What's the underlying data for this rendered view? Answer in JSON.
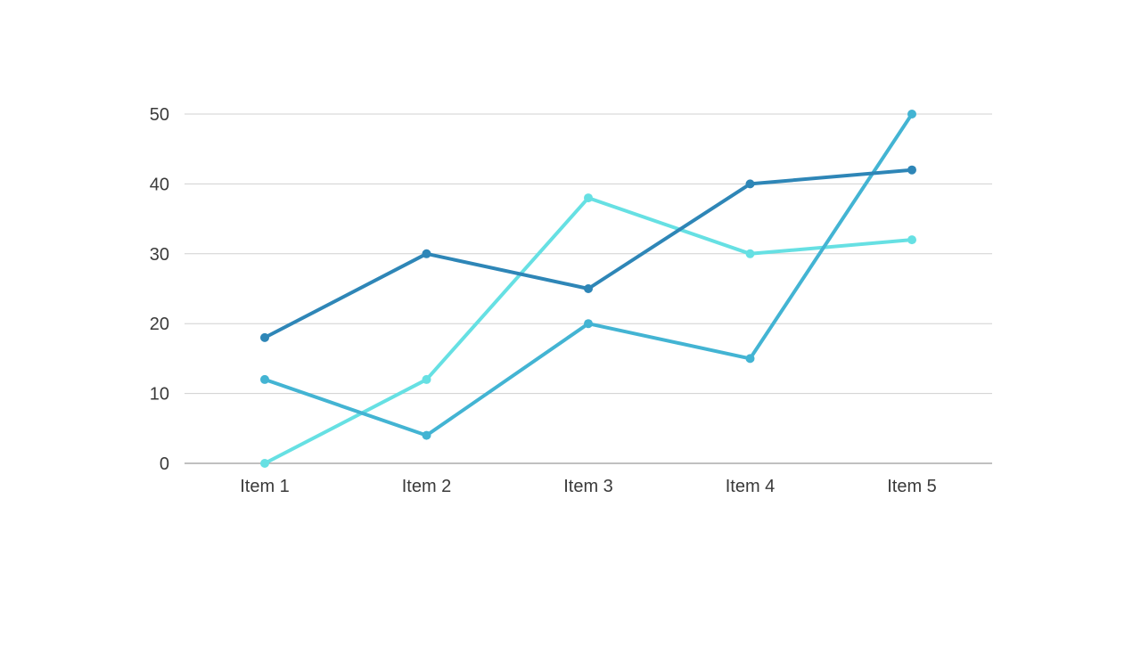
{
  "chart_data": {
    "type": "line",
    "categories": [
      "Item 1",
      "Item 2",
      "Item 3",
      "Item 4",
      "Item 5"
    ],
    "ylim": [
      0,
      50
    ],
    "yticks": [
      0,
      10,
      20,
      30,
      40,
      50
    ],
    "grid": true,
    "legend": "none",
    "series": [
      {
        "color": "#2e86b7",
        "values": [
          18,
          30,
          25,
          40,
          42
        ]
      },
      {
        "color": "#43b4d3",
        "values": [
          12,
          4,
          20,
          15,
          50
        ]
      },
      {
        "color": "#66e0e3",
        "values": [
          0,
          12,
          38,
          30,
          32
        ]
      }
    ]
  },
  "colors": {
    "grid": "#d0d0d0",
    "baseline": "#9a9a9a",
    "text": "#3a3a3a"
  }
}
